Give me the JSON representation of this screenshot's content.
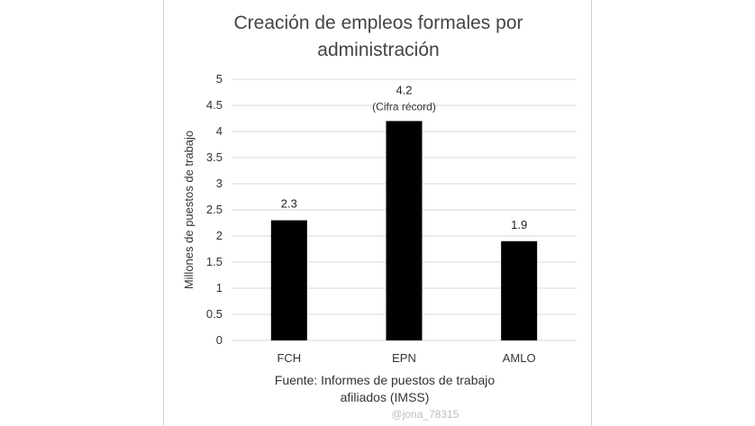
{
  "chart_data": {
    "type": "bar",
    "title": [
      "Creación de empleos formales por",
      "administración"
    ],
    "ylabel": "Millones de puestos de trabajo",
    "xlabel": "",
    "categories": [
      "FCH",
      "EPN",
      "AMLO"
    ],
    "values": [
      2.3,
      4.2,
      1.9
    ],
    "data_labels": [
      "2.3",
      "4.2",
      "1.9"
    ],
    "annotations": [
      {
        "category": "EPN",
        "text": "(Cifra récord)"
      }
    ],
    "ylim": [
      0,
      5
    ],
    "yticks": [
      "0",
      "0.5",
      "1",
      "1.5",
      "2",
      "2.5",
      "3",
      "3.5",
      "4",
      "4.5",
      "5"
    ],
    "grid": true,
    "legend": "none",
    "bar_color": "#000000",
    "source": [
      "Fuente: Informes de puestos de trabajo",
      "afiliados (IMSS)"
    ]
  },
  "watermark": "@jona_78315"
}
